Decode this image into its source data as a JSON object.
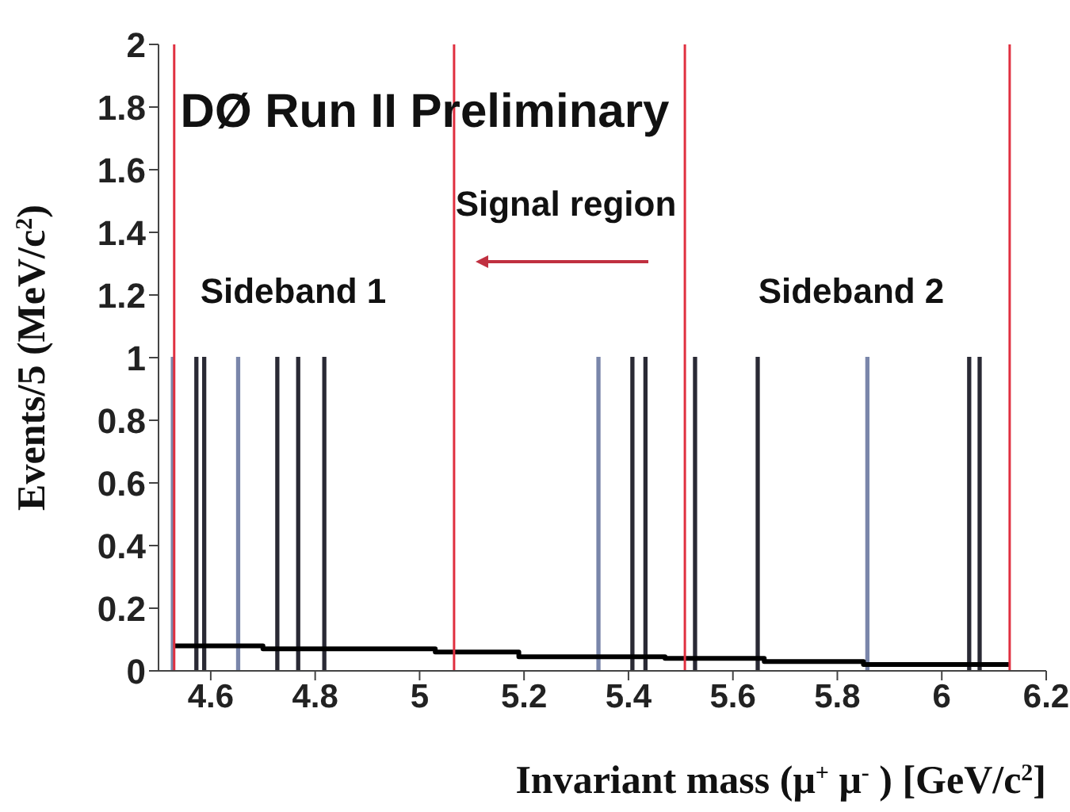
{
  "chart_data": {
    "type": "histogram",
    "xlabel": "Invariant mass (μ$^{+}$ μ$^{-}$ ) [GeV/c$^{2}$]",
    "ylabel": "Events/5 (MeV/c$^{2}$)",
    "bins": [
      4.525,
      4.53,
      4.57,
      4.575,
      4.585,
      4.59,
      4.65,
      4.655,
      4.725,
      4.73,
      4.765,
      4.77,
      4.815,
      4.82,
      5.34,
      5.345,
      5.405,
      5.41,
      5.43,
      5.435,
      5.525,
      5.53,
      5.645,
      5.65,
      5.855,
      5.86,
      6.05,
      6.055,
      6.07,
      6.075
    ],
    "series": [
      {
        "color": "#7a86aa",
        "values": [
          1,
          0,
          0,
          0,
          0,
          0,
          1,
          0,
          0,
          0,
          0,
          0,
          0,
          0,
          1,
          0,
          0,
          0,
          0,
          0,
          0,
          0,
          0,
          0,
          1,
          0,
          0,
          0,
          0
        ]
      },
      {
        "color": "#2a2a35",
        "values": [
          0,
          0,
          1,
          0,
          1,
          0,
          0,
          0,
          1,
          0,
          1,
          0,
          1,
          0,
          0,
          0,
          1,
          0,
          1,
          0,
          1,
          0,
          1,
          0,
          0,
          0,
          1,
          0,
          1
        ]
      },
      {
        "type": "step",
        "color": "#000000",
        "x": [
          4.53,
          4.7,
          5.03,
          5.19,
          5.47,
          5.66,
          5.85,
          6.13
        ],
        "values": [
          0.08,
          0.07,
          0.06,
          0.045,
          0.04,
          0.03,
          0.02,
          0.02
        ]
      }
    ],
    "xlim": [
      4.5,
      6.2
    ],
    "ylim": [
      0,
      2
    ],
    "xticks": [
      4.6,
      4.8,
      5,
      5.2,
      5.4,
      5.6,
      5.8,
      6,
      6.2
    ],
    "yticks": [
      0,
      0.2,
      0.4,
      0.6,
      0.8,
      1,
      1.2,
      1.4,
      1.6,
      1.8,
      2
    ],
    "ref_lines": [
      {
        "axis": "x",
        "value": 4.53,
        "color": "#e03040"
      },
      {
        "axis": "x",
        "value": 5.066,
        "color": "#e03040"
      },
      {
        "axis": "x",
        "value": 5.508,
        "color": "#e03040"
      },
      {
        "axis": "x",
        "value": 6.13,
        "color": "#e03040"
      }
    ],
    "annotations": [
      "DØ Run II Preliminary",
      "Sideband 1",
      "Signal region",
      "Sideband 2"
    ]
  }
}
